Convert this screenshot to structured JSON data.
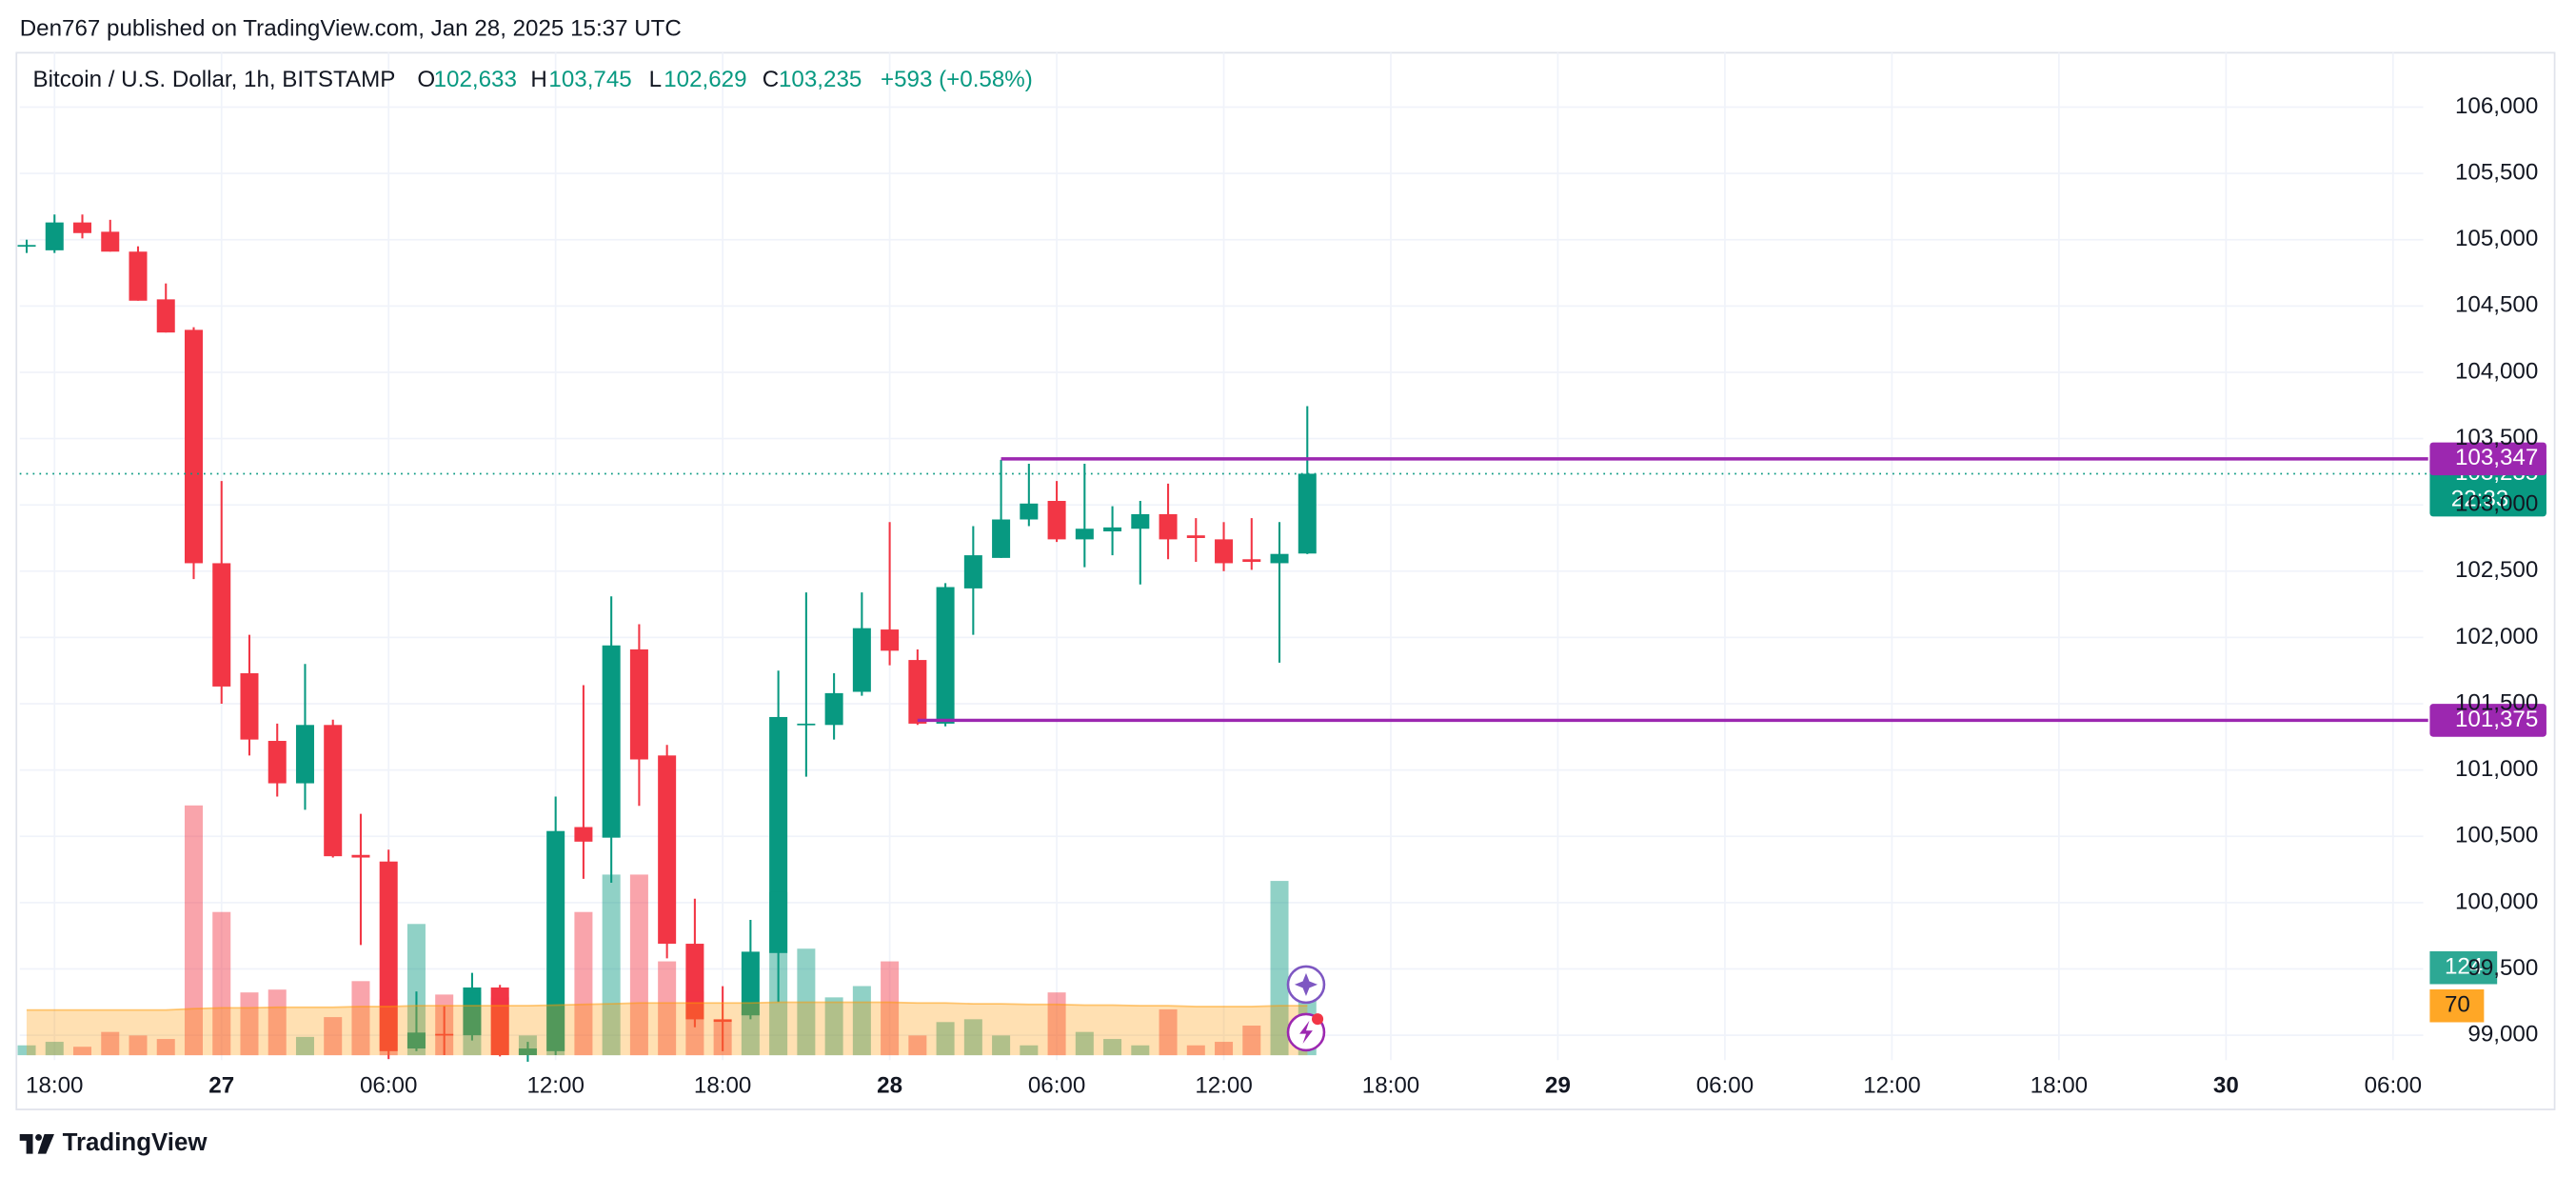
{
  "header": "Den767 published on TradingView.com, Jan 28, 2025 15:37 UTC",
  "footer": "TradingView",
  "chart_data": {
    "type": "candlestick",
    "symbol": "Bitcoin / U.S. Dollar, 1h, BITSTAMP",
    "ohlc": [
      {
        "key": "O",
        "label": "102,633"
      },
      {
        "key": "H",
        "label": "103,745"
      },
      {
        "key": "L",
        "label": "102,629"
      },
      {
        "key": "C",
        "label": "103,235"
      }
    ],
    "change": "+593 (+0.58%)",
    "x": [
      "2025-01-26T17:00",
      "2025-01-26T18:00",
      "2025-01-26T19:00",
      "2025-01-26T20:00",
      "2025-01-26T21:00",
      "2025-01-26T22:00",
      "2025-01-26T23:00",
      "2025-01-27T00:00",
      "2025-01-27T01:00",
      "2025-01-27T02:00",
      "2025-01-27T03:00",
      "2025-01-27T04:00",
      "2025-01-27T05:00",
      "2025-01-27T06:00",
      "2025-01-27T07:00",
      "2025-01-27T08:00",
      "2025-01-27T09:00",
      "2025-01-27T10:00",
      "2025-01-27T11:00",
      "2025-01-27T12:00",
      "2025-01-27T13:00",
      "2025-01-27T14:00",
      "2025-01-27T15:00",
      "2025-01-27T16:00",
      "2025-01-27T17:00",
      "2025-01-27T18:00",
      "2025-01-27T19:00",
      "2025-01-27T20:00",
      "2025-01-27T21:00",
      "2025-01-27T22:00",
      "2025-01-27T23:00",
      "2025-01-28T00:00",
      "2025-01-28T01:00",
      "2025-01-28T02:00",
      "2025-01-28T03:00",
      "2025-01-28T04:00",
      "2025-01-28T05:00",
      "2025-01-28T06:00",
      "2025-01-28T07:00",
      "2025-01-28T08:00",
      "2025-01-28T09:00",
      "2025-01-28T10:00",
      "2025-01-28T11:00",
      "2025-01-28T12:00",
      "2025-01-28T13:00",
      "2025-01-28T14:00",
      "2025-01-28T15:00"
    ],
    "open": [
      104950,
      104920,
      105130,
      105060,
      104910,
      104550,
      104320,
      102560,
      101730,
      101220,
      100900,
      101340,
      100360,
      100310,
      98900,
      99010,
      99000,
      99360,
      98850,
      98880,
      100570,
      100490,
      101910,
      101110,
      99690,
      99120,
      99150,
      99620,
      101340,
      101340,
      101590,
      102060,
      101830,
      101350,
      102370,
      102600,
      102890,
      103030,
      102740,
      102800,
      102820,
      102930,
      102770,
      102740,
      102590,
      102560,
      102633
    ],
    "high": [
      105000,
      105190,
      105190,
      105150,
      104950,
      104670,
      104340,
      103180,
      102020,
      101350,
      101800,
      101380,
      100670,
      100400,
      99330,
      99220,
      99470,
      99380,
      98950,
      100800,
      101640,
      102310,
      102100,
      101190,
      100030,
      99370,
      99870,
      101750,
      102340,
      101730,
      102340,
      102870,
      101910,
      102410,
      102840,
      103340,
      103310,
      103180,
      103310,
      102990,
      103030,
      103160,
      102900,
      102870,
      102900,
      102870,
      103745
    ],
    "low": [
      104900,
      104900,
      105010,
      104910,
      104540,
      104300,
      102440,
      101500,
      101110,
      100800,
      100700,
      100340,
      99680,
      98820,
      98880,
      98850,
      98960,
      98840,
      98800,
      98850,
      100180,
      100150,
      100730,
      99580,
      99060,
      98880,
      99120,
      99250,
      100950,
      101230,
      101560,
      101790,
      101340,
      101330,
      102020,
      102600,
      102840,
      102720,
      102530,
      102620,
      102400,
      102590,
      102570,
      102500,
      102510,
      101810,
      102629
    ],
    "close": [
      104960,
      105130,
      105050,
      104910,
      104540,
      104300,
      102560,
      101630,
      101230,
      100900,
      101340,
      100350,
      100340,
      98880,
      99020,
      99000,
      99360,
      98850,
      98900,
      100540,
      100460,
      101940,
      101080,
      99690,
      99120,
      99100,
      99630,
      101400,
      101350,
      101580,
      102070,
      101900,
      101350,
      102380,
      102620,
      102890,
      103010,
      102740,
      102820,
      102830,
      102930,
      102740,
      102750,
      102560,
      102570,
      102630,
      103235
    ],
    "volume": [
      14,
      19,
      12,
      33,
      28,
      23,
      354,
      203,
      89,
      93,
      26,
      54,
      105,
      79,
      186,
      86,
      89,
      82,
      28,
      70,
      203,
      256,
      256,
      133,
      91,
      47,
      63,
      231,
      151,
      82,
      98,
      133,
      28,
      47,
      51,
      28,
      14,
      89,
      33,
      23,
      14,
      65,
      14,
      19,
      42,
      247,
      124
    ],
    "volume_ma": [
      64,
      64,
      64,
      64,
      64,
      64,
      66,
      67,
      67,
      68,
      68,
      68,
      69,
      69,
      70,
      70,
      70,
      70,
      70,
      71,
      72,
      73,
      74,
      74,
      74,
      74,
      74,
      75,
      75,
      75,
      75,
      75,
      74,
      74,
      73,
      73,
      72,
      72,
      71,
      71,
      70,
      70,
      69,
      69,
      69,
      70,
      70
    ],
    "up_color": "#089981",
    "down_color": "#f23645",
    "ma_color": "#ff9800",
    "xlim": [
      "2025-01-26T16:45",
      "2025-01-30T07:05"
    ],
    "xticks": [
      {
        "value": "2025-01-26T18:00",
        "label": "18:00"
      },
      {
        "value": "2025-01-27T00:00",
        "label": "27"
      },
      {
        "value": "2025-01-27T06:00",
        "label": "06:00"
      },
      {
        "value": "2025-01-27T12:00",
        "label": "12:00"
      },
      {
        "value": "2025-01-27T18:00",
        "label": "18:00"
      },
      {
        "value": "2025-01-28T00:00",
        "label": "28"
      },
      {
        "value": "2025-01-28T06:00",
        "label": "06:00"
      },
      {
        "value": "2025-01-28T12:00",
        "label": "12:00"
      },
      {
        "value": "2025-01-28T18:00",
        "label": "18:00"
      },
      {
        "value": "2025-01-29T00:00",
        "label": "29"
      },
      {
        "value": "2025-01-29T06:00",
        "label": "06:00"
      },
      {
        "value": "2025-01-29T12:00",
        "label": "12:00"
      },
      {
        "value": "2025-01-29T18:00",
        "label": "18:00"
      },
      {
        "value": "2025-01-30T00:00",
        "label": "30"
      },
      {
        "value": "2025-01-30T06:00",
        "label": "06:00"
      }
    ],
    "ylim": [
      98750,
      106410
    ],
    "yticks": [
      {
        "value": 99000,
        "label": "99,000"
      },
      {
        "value": 99500,
        "label": "99,500"
      },
      {
        "value": 100000,
        "label": "100,000"
      },
      {
        "value": 100500,
        "label": "100,500"
      },
      {
        "value": 101000,
        "label": "101,000"
      },
      {
        "value": 101500,
        "label": "101,500"
      },
      {
        "value": 102000,
        "label": "102,000"
      },
      {
        "value": 102500,
        "label": "102,500"
      },
      {
        "value": 103000,
        "label": "103,000"
      },
      {
        "value": 103500,
        "label": "103,500"
      },
      {
        "value": 104000,
        "label": "104,000"
      },
      {
        "value": 104500,
        "label": "104,500"
      },
      {
        "value": 105000,
        "label": "105,000"
      },
      {
        "value": 105500,
        "label": "105,500"
      },
      {
        "value": 106000,
        "label": "106,000"
      }
    ],
    "grid": true,
    "levels": [
      {
        "value": 103347,
        "label": "103,347",
        "start": "2025-01-28T04:00",
        "color": "#9c27b0"
      },
      {
        "value": 101375,
        "label": "101,375",
        "start": "2025-01-28T01:00",
        "color": "#9c27b0"
      }
    ],
    "last_price": {
      "value": 103235,
      "label": "103,235",
      "countdown": "22:33"
    }
  }
}
